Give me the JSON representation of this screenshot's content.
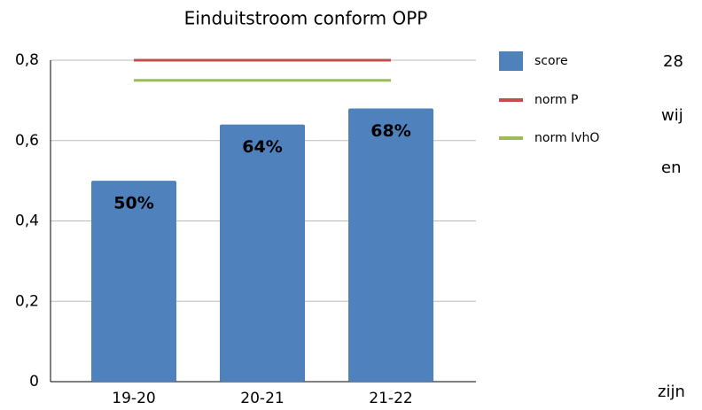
{
  "chart_data": {
    "type": "bar",
    "title": "Einduitstroom conform OPP",
    "categories": [
      "19-20",
      "20-21",
      "21-22"
    ],
    "series": [
      {
        "name": "score",
        "type": "bar",
        "color": "#4f81bd",
        "values": [
          0.5,
          0.64,
          0.68
        ],
        "value_labels": [
          "50%",
          "64%",
          "68%"
        ]
      },
      {
        "name": "norm P",
        "type": "line",
        "color": "#c0504d",
        "values": [
          0.8,
          0.8,
          0.8
        ]
      },
      {
        "name": "norm IvhO",
        "type": "line",
        "color": "#9bbb59",
        "values": [
          0.75,
          0.75,
          0.75
        ]
      }
    ],
    "ylim": [
      0,
      0.8
    ],
    "yticks": [
      0,
      {
        "value": 0.2,
        "label": "0,2"
      },
      {
        "value": 0.4,
        "label": "0,4"
      },
      {
        "value": 0.6,
        "label": "0,6"
      },
      {
        "value": 0.8,
        "label": "0,8"
      }
    ],
    "grid": true,
    "legend": "right"
  },
  "side_text": [
    "28",
    "wij",
    "en",
    "zijn"
  ]
}
